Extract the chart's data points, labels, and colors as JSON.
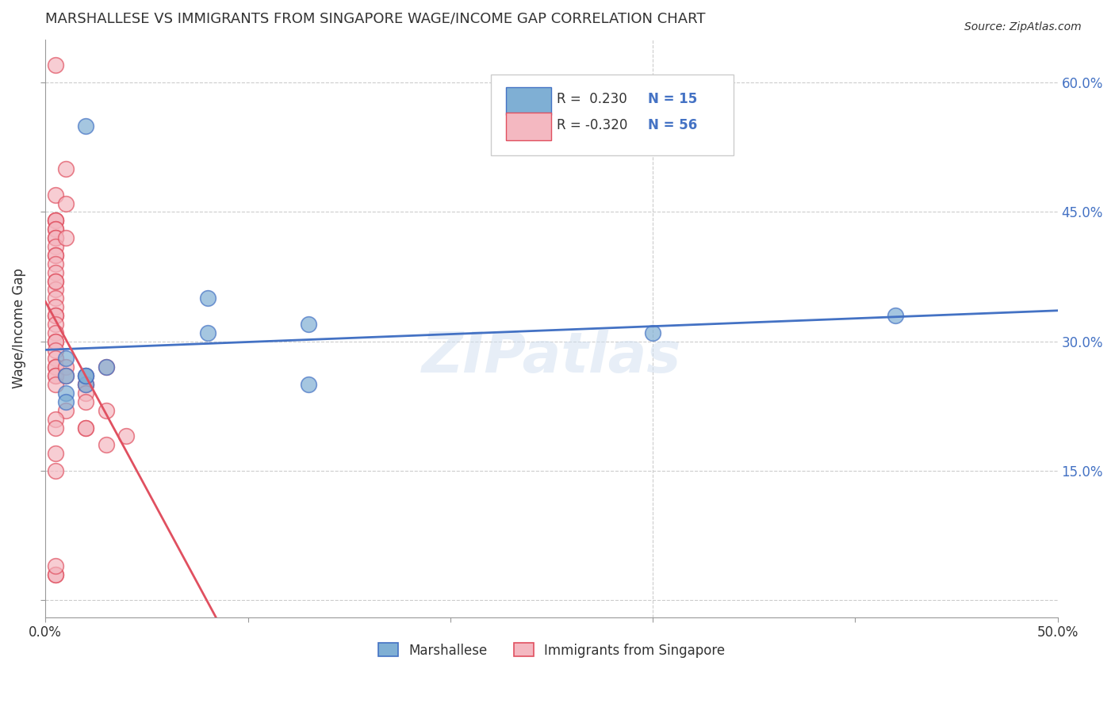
{
  "title": "MARSHALLESE VS IMMIGRANTS FROM SINGAPORE WAGE/INCOME GAP CORRELATION CHART",
  "source": "Source: ZipAtlas.com",
  "ylabel": "Wage/Income Gap",
  "xlabel_bottom_left": "0.0%",
  "xlabel_bottom_right": "50.0%",
  "xlim": [
    0.0,
    0.5
  ],
  "ylim": [
    -0.02,
    0.65
  ],
  "yticks": [
    0.0,
    0.15,
    0.3,
    0.45,
    0.6
  ],
  "ytick_labels": [
    "",
    "15.0%",
    "30.0%",
    "45.0%",
    "60.0%"
  ],
  "xticks": [
    0.0,
    0.1,
    0.2,
    0.3,
    0.4,
    0.5
  ],
  "xtick_labels": [
    "0.0%",
    "",
    "",
    "",
    "",
    "50.0%"
  ],
  "blue_R": 0.23,
  "blue_N": 15,
  "pink_R": -0.32,
  "pink_N": 56,
  "blue_color": "#7fafd4",
  "pink_color": "#f4b8c1",
  "blue_line_color": "#4472c4",
  "pink_line_color": "#e05060",
  "pink_dashed_color": "#c0c0c0",
  "legend_label_blue": "Marshallese",
  "legend_label_pink": "Immigrants from Singapore",
  "watermark": "ZIPatlas",
  "blue_scatter_x": [
    0.02,
    0.08,
    0.01,
    0.01,
    0.08,
    0.02,
    0.02,
    0.03,
    0.02,
    0.01,
    0.01,
    0.13,
    0.13,
    0.3,
    0.42
  ],
  "blue_scatter_y": [
    0.55,
    0.35,
    0.28,
    0.26,
    0.31,
    0.25,
    0.26,
    0.27,
    0.26,
    0.24,
    0.23,
    0.32,
    0.25,
    0.31,
    0.33
  ],
  "pink_scatter_x": [
    0.005,
    0.01,
    0.005,
    0.01,
    0.005,
    0.005,
    0.005,
    0.005,
    0.005,
    0.005,
    0.005,
    0.005,
    0.005,
    0.005,
    0.005,
    0.005,
    0.005,
    0.005,
    0.005,
    0.005,
    0.005,
    0.005,
    0.005,
    0.005,
    0.005,
    0.005,
    0.005,
    0.005,
    0.005,
    0.005,
    0.005,
    0.005,
    0.005,
    0.01,
    0.01,
    0.01,
    0.01,
    0.02,
    0.02,
    0.02,
    0.02,
    0.02,
    0.02,
    0.03,
    0.02,
    0.03,
    0.03,
    0.04,
    0.005,
    0.005,
    0.005,
    0.005,
    0.005,
    0.005,
    0.005,
    0.005
  ],
  "pink_scatter_y": [
    0.62,
    0.5,
    0.47,
    0.46,
    0.44,
    0.44,
    0.44,
    0.43,
    0.43,
    0.42,
    0.42,
    0.41,
    0.4,
    0.4,
    0.39,
    0.38,
    0.37,
    0.36,
    0.35,
    0.34,
    0.33,
    0.33,
    0.32,
    0.31,
    0.3,
    0.3,
    0.29,
    0.28,
    0.27,
    0.27,
    0.26,
    0.26,
    0.25,
    0.42,
    0.27,
    0.26,
    0.22,
    0.26,
    0.25,
    0.25,
    0.24,
    0.23,
    0.2,
    0.27,
    0.2,
    0.22,
    0.18,
    0.19,
    0.03,
    0.03,
    0.04,
    0.21,
    0.2,
    0.37,
    0.17,
    0.15
  ]
}
